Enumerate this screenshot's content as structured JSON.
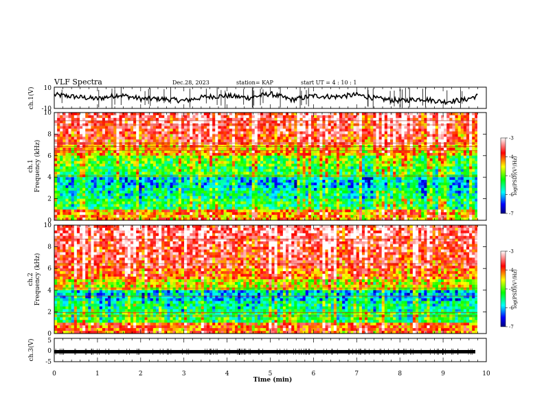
{
  "header": {
    "title": "VLF Spectra",
    "date": "Dec.28, 2023",
    "station": "station= KAP",
    "start": "start  UT =   4 : 10 : 1"
  },
  "colorbar": {
    "label": "log(PSD)(V²/Hz)",
    "ticks": [
      "-3",
      "-4",
      "-5",
      "-6",
      "-7"
    ]
  },
  "chart_data": [
    {
      "type": "line",
      "panel": "ch1-waveform",
      "ylabel": "ch.1(V)",
      "ylim": [
        -10,
        10
      ],
      "ytick_labels": [
        "10",
        "-10"
      ],
      "x": [
        0,
        0.5,
        1,
        1.5,
        2,
        2.5,
        3,
        3.5,
        4,
        4.5,
        5,
        5.5,
        6,
        6.5,
        7,
        7.5,
        8,
        8.5,
        9,
        9.5,
        9.8
      ],
      "values": [
        3,
        1,
        -1,
        3,
        -1,
        -1,
        -3,
        1,
        2,
        0,
        4,
        -2,
        2,
        1,
        3,
        -1,
        -3,
        -1,
        -4,
        -2,
        2
      ]
    },
    {
      "type": "heatmap",
      "panel": "ch1-spectrogram",
      "ylabel": "ch.1 Frequency (kHz)",
      "ylim": [
        0,
        10
      ],
      "ytick_labels": [
        "0",
        "2",
        "4",
        "6",
        "8",
        "10"
      ],
      "zlim": [
        -7,
        -3
      ],
      "z_label": "log(PSD)(V²/Hz)",
      "freq_kHz": [
        0.5,
        1.5,
        2.5,
        3.5,
        4.5,
        5.5,
        6.5,
        7.5,
        8.5,
        9.5
      ],
      "mean_log_psd": [
        -4.2,
        -5.3,
        -5.6,
        -5.9,
        -5.2,
        -5.0,
        -4.3,
        -3.8,
        -3.6,
        -3.5
      ]
    },
    {
      "type": "heatmap",
      "panel": "ch2-spectrogram",
      "ylabel": "ch.2 Frequency (kHz)",
      "ylim": [
        0,
        10
      ],
      "ytick_labels": [
        "0",
        "2",
        "4",
        "6",
        "8",
        "10"
      ],
      "zlim": [
        -7,
        -3
      ],
      "z_label": "log(PSD)(V²/Hz)",
      "freq_kHz": [
        0.5,
        1.5,
        2.5,
        3.5,
        4.5,
        5.5,
        6.5,
        7.5,
        8.5,
        9.5
      ],
      "mean_log_psd": [
        -4.0,
        -5.2,
        -5.5,
        -5.9,
        -4.6,
        -4.0,
        -3.7,
        -3.6,
        -3.5,
        -3.4
      ]
    },
    {
      "type": "line",
      "panel": "ch3-waveform",
      "ylabel": "ch.3(V)",
      "ylim": [
        -5,
        5
      ],
      "ytick_labels": [
        "5",
        "0",
        "-5"
      ],
      "x": [
        0,
        9.8
      ],
      "values": [
        0,
        0
      ]
    }
  ],
  "xaxis": {
    "label": "Time (min)",
    "xlim": [
      0,
      10
    ],
    "tick_labels": [
      "0",
      "1",
      "2",
      "3",
      "4",
      "5",
      "6",
      "7",
      "8",
      "9",
      "10"
    ]
  }
}
